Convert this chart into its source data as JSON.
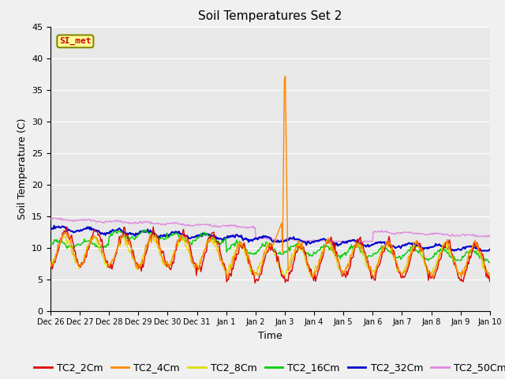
{
  "title": "Soil Temperatures Set 2",
  "xlabel": "Time",
  "ylabel": "Soil Temperature (C)",
  "ylim": [
    0,
    45
  ],
  "yticks": [
    0,
    5,
    10,
    15,
    20,
    25,
    30,
    35,
    40,
    45
  ],
  "x_labels": [
    "Dec 26",
    "Dec 27",
    "Dec 28",
    "Dec 29",
    "Dec 30",
    "Dec 31",
    "Jan 1",
    "Jan 2",
    "Jan 3",
    "Jan 4",
    "Jan 5",
    "Jan 6",
    "Jan 7",
    "Jan 8",
    "Jan 9",
    "Jan 10"
  ],
  "annotation_text": "SI_met",
  "annotation_color": "#cc0000",
  "annotation_bg": "#ffff99",
  "annotation_border": "#888800",
  "series": {
    "TC2_2Cm": {
      "color": "#dd0000",
      "lw": 1.0
    },
    "TC2_4Cm": {
      "color": "#ff8800",
      "lw": 1.0
    },
    "TC2_8Cm": {
      "color": "#dddd00",
      "lw": 1.0
    },
    "TC2_16Cm": {
      "color": "#00cc00",
      "lw": 1.0
    },
    "TC2_32Cm": {
      "color": "#0000cc",
      "lw": 1.5
    },
    "TC2_50Cm": {
      "color": "#dd88dd",
      "lw": 1.0
    }
  },
  "bg_color": "#e8e8e8",
  "plot_bg": "#e8e8e8",
  "fig_bg": "#f0f0f0",
  "grid_color": "#ffffff",
  "title_fontsize": 11,
  "axis_fontsize": 9,
  "tick_fontsize": 8,
  "legend_fontsize": 9
}
